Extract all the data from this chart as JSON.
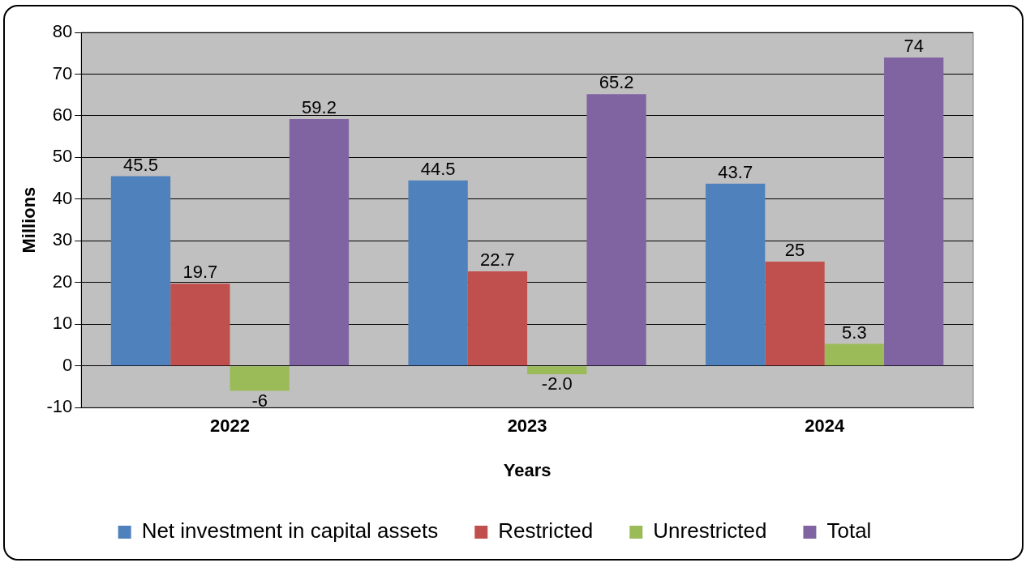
{
  "chart_data": {
    "type": "bar",
    "xlabel": "Years",
    "ylabel": "Millions",
    "categories": [
      "2022",
      "2023",
      "2024"
    ],
    "series": [
      {
        "name": "Net investment in capital assets",
        "color": "#4f81bd",
        "values": [
          45.5,
          44.5,
          43.7
        ],
        "value_labels": [
          "45.5",
          "44.5",
          "43.7"
        ]
      },
      {
        "name": "Restricted",
        "color": "#c0504d",
        "values": [
          19.7,
          22.7,
          25
        ],
        "value_labels": [
          "19.7",
          "22.7",
          "25"
        ]
      },
      {
        "name": "Unrestricted",
        "color": "#9bbb59",
        "values": [
          -6,
          -2.0,
          5.3
        ],
        "value_labels": [
          "-6",
          "-2.0",
          "5.3"
        ]
      },
      {
        "name": "Total",
        "color": "#8064a2",
        "values": [
          59.2,
          65.2,
          74
        ],
        "value_labels": [
          "59.2",
          "65.2",
          "74"
        ]
      }
    ],
    "ylim": [
      -10,
      80
    ],
    "yticks": [
      -10,
      0,
      10,
      20,
      30,
      40,
      50,
      60,
      70,
      80
    ],
    "grid": "y",
    "legend": "bottom"
  }
}
